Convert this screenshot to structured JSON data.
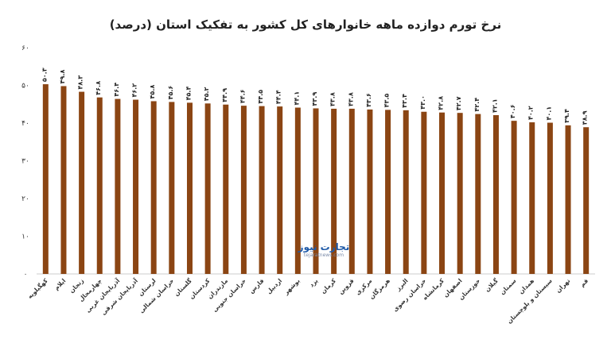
{
  "chart_data": {
    "type": "bar",
    "title": "نرخ تورم دوازده ماهه خانوارهای کل کشور به تفکیک استان (درصد)",
    "xlabel": "",
    "ylabel": "",
    "ylim": [
      0,
      60
    ],
    "yticks": [
      0,
      10,
      20,
      30,
      40,
      50,
      60
    ],
    "ytick_labels": [
      "۰",
      "۱۰",
      "۲۰",
      "۳۰",
      "۴۰",
      "۵۰",
      "۶۰"
    ],
    "grid": false,
    "bar_color": "#8b4513",
    "categories": [
      "کهگیلویه",
      "ایلام",
      "زنجان",
      "چهارمحال",
      "آذربایجان غربی",
      "آذربایجان شرقی",
      "لرستان",
      "خراسان شمالی",
      "گلستان",
      "کردستان",
      "مازندران",
      "خراسان جنوبی",
      "فارس",
      "اردبیل",
      "بوشهر",
      "یزد",
      "کرمان",
      "قزوین",
      "مرکزی",
      "هرمزگان",
      "البرز",
      "خراسان رضوی",
      "کرمانشاه",
      "اصفهان",
      "خوزستان",
      "گیلان",
      "سمنان",
      "همدان",
      "سیستان و بلوچستان",
      "تهران",
      "قم"
    ],
    "values": [
      50.3,
      49.8,
      48.3,
      46.8,
      46.4,
      46.2,
      45.8,
      45.6,
      45.4,
      45.2,
      44.9,
      44.6,
      44.5,
      44.4,
      44.1,
      43.9,
      43.8,
      43.8,
      43.6,
      43.5,
      43.4,
      43.0,
      42.8,
      42.7,
      42.4,
      42.1,
      40.6,
      40.2,
      40.1,
      39.4,
      38.9
    ],
    "data_labels": [
      "۵۰.۳",
      "۴۹.۸",
      "۴۸.۳",
      "۴۶.۸",
      "۴۶.۴",
      "۴۶.۲",
      "۴۵.۸",
      "۴۵.۶",
      "۴۵.۴",
      "۴۵.۲",
      "۴۴.۹",
      "۴۴.۶",
      "۴۴.۵",
      "۴۴.۴",
      "۴۴.۱",
      "۴۳.۹",
      "۴۳.۸",
      "۴۳.۸",
      "۴۳.۶",
      "۴۳.۵",
      "۴۳.۴",
      "۴۳.۰",
      "۴۲.۸",
      "۴۲.۷",
      "۴۲.۴",
      "۴۲.۱",
      "۴۰.۶",
      "۴۰.۲",
      "۴۰.۱",
      "۳۹.۴",
      "۳۸.۹"
    ]
  },
  "watermark": {
    "text": "تجارت نیوز",
    "url": "tejaratnews.com"
  }
}
